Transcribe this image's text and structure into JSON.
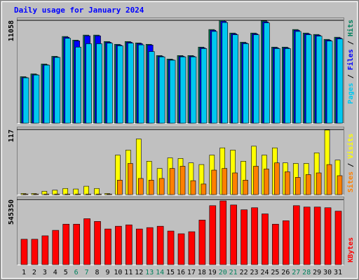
{
  "chart_data": [
    {
      "type": "bar",
      "title": "Daily usage for January 2024",
      "categories": [
        "1",
        "2",
        "3",
        "4",
        "5",
        "6",
        "7",
        "8",
        "9",
        "10",
        "11",
        "12",
        "13",
        "14",
        "15",
        "16",
        "17",
        "18",
        "19",
        "20",
        "21",
        "22",
        "23",
        "24",
        "25",
        "26",
        "27",
        "28",
        "29",
        "30",
        "31"
      ],
      "category_label_colors": [
        "#000000",
        "#000000",
        "#000000",
        "#000000",
        "#000000",
        "#00805c",
        "#00805c",
        "#000000",
        "#000000",
        "#000000",
        "#000000",
        "#000000",
        "#00805c",
        "#00805c",
        "#000000",
        "#000000",
        "#000000",
        "#000000",
        "#000000",
        "#00805c",
        "#00805c",
        "#000000",
        "#000000",
        "#000000",
        "#000000",
        "#000000",
        "#00805c",
        "#00805c",
        "#000000",
        "#000000",
        "#000000"
      ],
      "ylim": [
        0,
        11058
      ],
      "yticks": [
        11058
      ],
      "legend_separator": " / ",
      "series": [
        {
          "name": "Hits",
          "color": "#00805c",
          "values": [
            5000,
            5300,
            6360,
            7190,
            9320,
            8930,
            9470,
            9470,
            8780,
            8480,
            8780,
            8630,
            8480,
            7270,
            6890,
            7270,
            7270,
            8180,
            10070,
            11058,
            9690,
            8710,
            9690,
            11000,
            8180,
            8180,
            10070,
            9690,
            9540,
            9010,
            9240
          ]
        },
        {
          "name": "Files",
          "color": "#0000ff",
          "values": [
            4920,
            5220,
            6280,
            7110,
            9240,
            8850,
            9390,
            9390,
            8700,
            8400,
            8700,
            8550,
            8400,
            7190,
            6810,
            7190,
            7190,
            8100,
            9990,
            10950,
            9610,
            8630,
            9610,
            10900,
            8100,
            8100,
            9990,
            9610,
            9460,
            8930,
            9160
          ]
        },
        {
          "name": "Pages",
          "color": "#00c8f0",
          "values": [
            4880,
            5180,
            6240,
            7070,
            9120,
            8180,
            8540,
            8540,
            8600,
            8320,
            8600,
            8420,
            7700,
            7130,
            6770,
            7130,
            7130,
            8020,
            9860,
            10820,
            9510,
            8550,
            9510,
            10780,
            8020,
            8020,
            9860,
            9510,
            9360,
            8830,
            9060
          ]
        }
      ]
    },
    {
      "type": "bar",
      "ylim": [
        0,
        117
      ],
      "yticks": [
        117
      ],
      "legend_separator": " / ",
      "series": [
        {
          "name": "Visits",
          "color": "#ffff00",
          "values": [
            2,
            2,
            6,
            8,
            11,
            10,
            15,
            11,
            2,
            71,
            80,
            100,
            60,
            47,
            66,
            65,
            57,
            54,
            71,
            84,
            80,
            60,
            87,
            71,
            84,
            57,
            56,
            56,
            75,
            116,
            62
          ]
        },
        {
          "name": "Sites",
          "color": "#ff8000",
          "values": [
            1,
            1,
            1,
            1,
            1,
            1,
            1,
            1,
            1,
            26,
            56,
            29,
            26,
            29,
            47,
            51,
            25,
            19,
            44,
            47,
            39,
            26,
            51,
            46,
            57,
            41,
            31,
            36,
            39,
            54,
            34
          ]
        }
      ]
    },
    {
      "type": "bar",
      "ylim": [
        0,
        545350
      ],
      "yticks": [
        545350
      ],
      "series": [
        {
          "name": "KBytes",
          "color": "#ff0000",
          "values": [
            212400,
            212400,
            241100,
            287000,
            338700,
            338700,
            384600,
            361700,
            298500,
            321500,
            333000,
            298500,
            310000,
            321500,
            281300,
            258300,
            275500,
            373100,
            493700,
            533800,
            499400,
            459200,
            476400,
            424800,
            338700,
            367400,
            493700,
            482200,
            482200,
            476400,
            447700
          ]
        }
      ]
    }
  ]
}
